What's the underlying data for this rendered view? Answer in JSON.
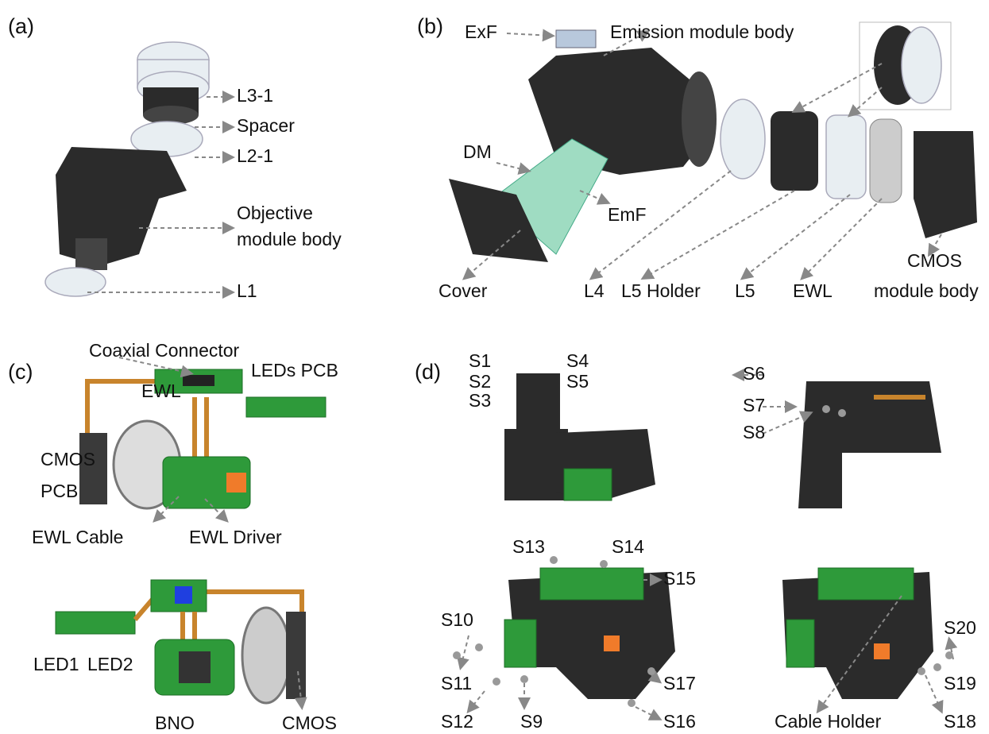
{
  "panels": [
    {
      "label": "(a)",
      "callouts": [
        "L3-1",
        "Spacer",
        "L2-1",
        "Objective",
        "module body",
        "L1"
      ]
    },
    {
      "label": "(b)",
      "callouts": [
        "ExF",
        "Emission module body",
        "DM",
        "EmF",
        "Cover",
        "L4",
        "L5 Holder",
        "L5",
        "EWL",
        "CMOS",
        "module body"
      ]
    },
    {
      "label": "(c)",
      "callouts": [
        "Coaxial Connector",
        "LEDs PCB",
        "EWL",
        "CMOS",
        "PCB",
        "EWL Cable",
        "EWL Driver",
        "LED1",
        "LED2",
        "BNO",
        "CMOS"
      ]
    },
    {
      "label": "(d)",
      "callouts": [
        "S1",
        "S2",
        "S3",
        "S4",
        "S5",
        "S6",
        "S7",
        "S8",
        "S13",
        "S14",
        "S15",
        "S10",
        "S11",
        "S12",
        "S9",
        "S17",
        "S16",
        "S20",
        "S19",
        "S18",
        "Cable Holder"
      ]
    }
  ]
}
